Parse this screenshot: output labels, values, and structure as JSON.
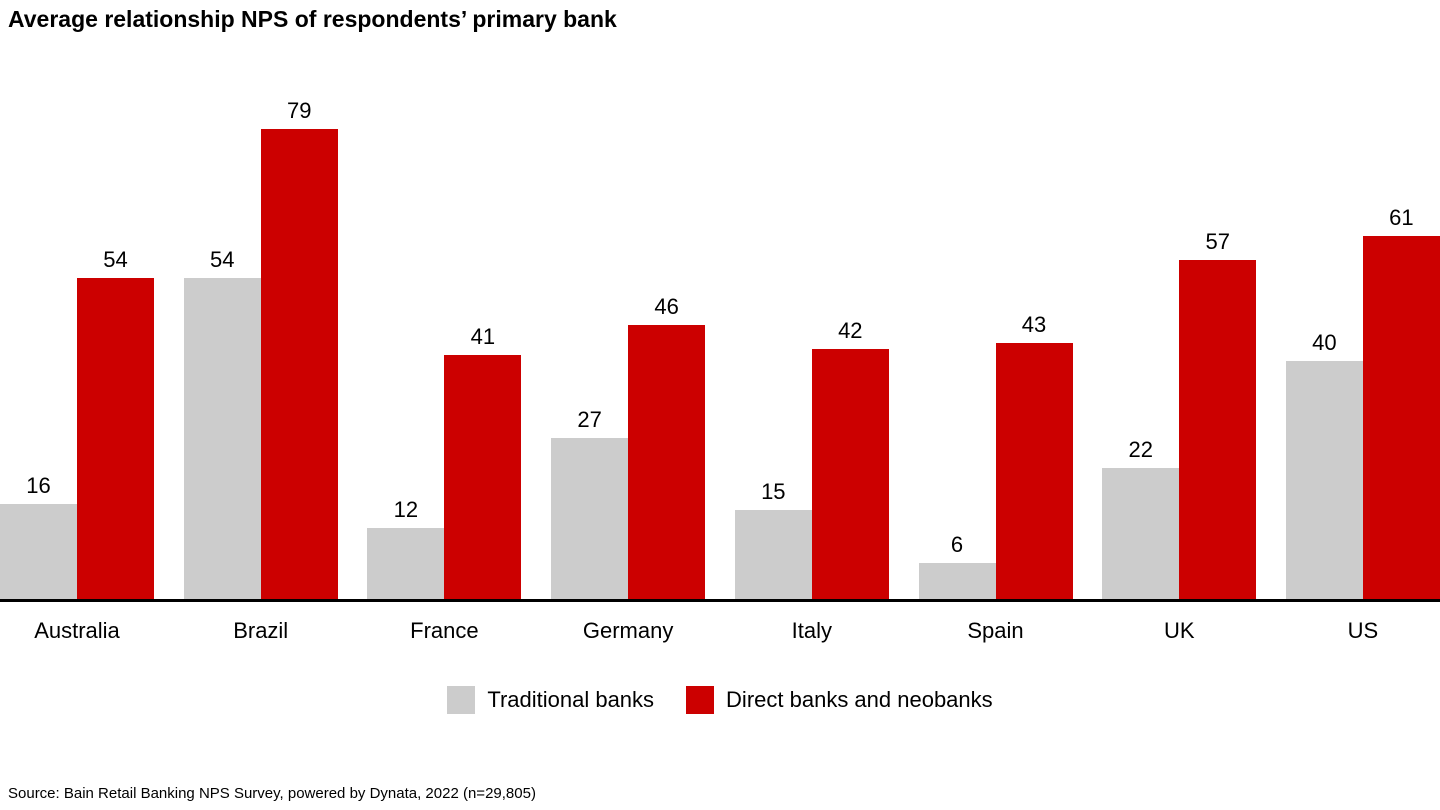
{
  "header": {
    "title": "Average relationship NPS of respondents’ primary bank"
  },
  "chart_data": {
    "type": "bar",
    "title": "Average relationship NPS of respondents’ primary bank",
    "categories": [
      "Australia",
      "Brazil",
      "France",
      "Germany",
      "Italy",
      "Spain",
      "UK",
      "US"
    ],
    "series": [
      {
        "name": "Traditional banks",
        "color": "#CCCCCC",
        "values": [
          16,
          54,
          12,
          27,
          15,
          6,
          22,
          40
        ]
      },
      {
        "name": "Direct banks and neobanks",
        "color": "#CC0000",
        "values": [
          54,
          79,
          41,
          46,
          42,
          43,
          57,
          61
        ]
      }
    ],
    "value_labels": true,
    "xlabel": "",
    "ylabel": "",
    "ylim": [
      0,
      79
    ],
    "grid": false,
    "legend_position": "bottom",
    "axis_color": "#000000"
  },
  "footer": {
    "source": "Source: Bain Retail Banking NPS Survey, powered by Dynata, 2022 (n=29,805)"
  }
}
